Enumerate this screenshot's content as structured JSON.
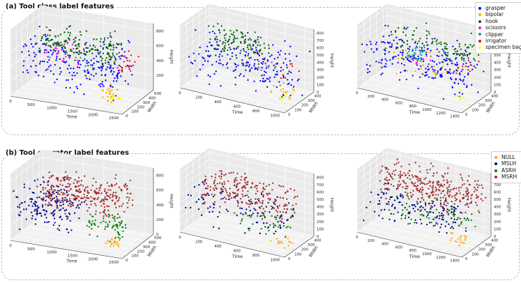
{
  "panel_a": {
    "title": "(a) Tool class label features"
  },
  "panel_b": {
    "title": "(b) Tool operator label features"
  },
  "chart_data": [
    {
      "type": "scatter",
      "projection": "3d",
      "panel": "a",
      "title": "(a) Tool class label features",
      "xlabel": "Time",
      "ylabel": "Width",
      "zlabel": "Height",
      "xticks": [
        0,
        500,
        1000,
        1500,
        2000,
        2500
      ],
      "xtick_labels": [
        "0",
        "500",
        "1000",
        "1500",
        "2000",
        "2500"
      ],
      "yticks": [
        0,
        100,
        200,
        300,
        400,
        500
      ],
      "zticks": [
        200,
        400,
        600,
        800
      ],
      "xlim": [
        0,
        2700
      ],
      "ylim": [
        0,
        550
      ],
      "zlim": [
        0,
        900
      ],
      "series": [
        {
          "name": "grasper",
          "color": "#0000ff",
          "region": {
            "x": [
              0,
              2500
            ],
            "y": [
              100,
              450
            ],
            "z": [
              50,
              750
            ]
          },
          "count": 230
        },
        {
          "name": "bipolar",
          "color": "#ffa500",
          "region": {
            "x": [
              2100,
              2400
            ],
            "y": [
              50,
              200
            ],
            "z": [
              50,
              250
            ]
          },
          "count": 25
        },
        {
          "name": "hook",
          "color": "#006400",
          "region": {
            "x": [
              300,
              2100
            ],
            "y": [
              200,
              500
            ],
            "z": [
              350,
              800
            ]
          },
          "count": 190
        },
        {
          "name": "scissors",
          "color": "#ff00ff",
          "region": {
            "x": [
              400,
              1300
            ],
            "y": [
              250,
              450
            ],
            "z": [
              300,
              650
            ]
          },
          "count": 22
        },
        {
          "name": "clipper",
          "color": "#00a0a0",
          "region": {
            "x": [
              1200,
              1600
            ],
            "y": [
              200,
              350
            ],
            "z": [
              300,
              600
            ]
          },
          "count": 6
        },
        {
          "name": "irrigator",
          "color": "#ff0000",
          "region": {
            "x": [
              2200,
              2600
            ],
            "y": [
              250,
              450
            ],
            "z": [
              300,
              650
            ]
          },
          "count": 22
        },
        {
          "name": "specimen bag",
          "color": "#ffff00",
          "region": {
            "x": [
              2300,
              2500
            ],
            "y": [
              50,
              150
            ],
            "z": [
              50,
              200
            ]
          },
          "count": 10
        }
      ]
    },
    {
      "type": "scatter",
      "projection": "3d",
      "panel": "a",
      "xlabel": "Time",
      "ylabel": "Width",
      "zlabel": "Height",
      "xticks": [
        0,
        200,
        400,
        600,
        800,
        1000
      ],
      "xtick_labels": [
        "0",
        "200",
        "400",
        "600",
        "800",
        "1000"
      ],
      "yticks": [
        0,
        100,
        200,
        300,
        400
      ],
      "zticks": [
        0,
        100,
        200,
        300,
        400,
        500,
        600,
        700,
        800
      ],
      "xlim": [
        0,
        1100
      ],
      "ylim": [
        0,
        450
      ],
      "zlim": [
        0,
        850
      ],
      "series": [
        {
          "name": "grasper",
          "color": "#0000ff",
          "region": {
            "x": [
              0,
              1100
            ],
            "y": [
              50,
              400
            ],
            "z": [
              50,
              700
            ]
          },
          "count": 200
        },
        {
          "name": "bipolar",
          "color": "#ffa500",
          "region": {
            "x": [
              900,
              1100
            ],
            "y": [
              50,
              200
            ],
            "z": [
              100,
              300
            ]
          },
          "count": 15
        },
        {
          "name": "hook",
          "color": "#006400",
          "region": {
            "x": [
              150,
              700
            ],
            "y": [
              200,
              400
            ],
            "z": [
              300,
              800
            ]
          },
          "count": 110
        },
        {
          "name": "scissors",
          "color": "#ff00ff",
          "region": {
            "x": [
              500,
              800
            ],
            "y": [
              150,
              300
            ],
            "z": [
              300,
              500
            ]
          },
          "count": 10
        },
        {
          "name": "clipper",
          "color": "#00a0a0",
          "region": {
            "x": [
              700,
              900
            ],
            "y": [
              150,
              300
            ],
            "z": [
              250,
              450
            ]
          },
          "count": 5
        },
        {
          "name": "irrigator",
          "color": "#ff0000",
          "region": {
            "x": [
              850,
              1050
            ],
            "y": [
              150,
              350
            ],
            "z": [
              250,
              450
            ]
          },
          "count": 10
        },
        {
          "name": "specimen bag",
          "color": "#ffff00",
          "region": {
            "x": [
              950,
              1100
            ],
            "y": [
              50,
              150
            ],
            "z": [
              50,
              200
            ]
          },
          "count": 12
        }
      ]
    },
    {
      "type": "scatter",
      "projection": "3d",
      "panel": "a",
      "xlabel": "Time",
      "ylabel": "Width",
      "zlabel": "Height",
      "xticks": [
        0,
        200,
        400,
        600,
        800,
        1000,
        1200,
        1400
      ],
      "xtick_labels": [
        "0",
        "200",
        "400",
        "600",
        "800",
        "1000",
        "1200",
        "1400"
      ],
      "yticks": [
        0,
        100,
        200,
        300,
        400
      ],
      "zticks": [
        0,
        100,
        200,
        300,
        400,
        500,
        600,
        700,
        800
      ],
      "xlim": [
        0,
        1500
      ],
      "ylim": [
        0,
        450
      ],
      "zlim": [
        0,
        850
      ],
      "series": [
        {
          "name": "grasper",
          "color": "#0000ff",
          "region": {
            "x": [
              0,
              1500
            ],
            "y": [
              50,
              400
            ],
            "z": [
              50,
              700
            ]
          },
          "count": 240
        },
        {
          "name": "bipolar",
          "color": "#ffa500",
          "region": {
            "x": [
              400,
              1200
            ],
            "y": [
              100,
              350
            ],
            "z": [
              100,
              600
            ]
          },
          "count": 35
        },
        {
          "name": "hook",
          "color": "#006400",
          "region": {
            "x": [
              200,
              1400
            ],
            "y": [
              200,
              450
            ],
            "z": [
              300,
              800
            ]
          },
          "count": 110
        },
        {
          "name": "scissors",
          "color": "#ff00ff",
          "region": {
            "x": [
              500,
              900
            ],
            "y": [
              150,
              300
            ],
            "z": [
              300,
              500
            ]
          },
          "count": 8
        },
        {
          "name": "clipper",
          "color": "#00a0a0",
          "region": {
            "x": [
              500,
              800
            ],
            "y": [
              150,
              300
            ],
            "z": [
              350,
              600
            ]
          },
          "count": 25
        },
        {
          "name": "irrigator",
          "color": "#ff0000",
          "region": {
            "x": [
              1200,
              1450
            ],
            "y": [
              200,
              350
            ],
            "z": [
              300,
              500
            ]
          },
          "count": 10
        },
        {
          "name": "specimen bag",
          "color": "#ffff00",
          "region": {
            "x": [
              1300,
              1500
            ],
            "y": [
              50,
              150
            ],
            "z": [
              50,
              200
            ]
          },
          "count": 10
        }
      ]
    },
    {
      "type": "scatter",
      "projection": "3d",
      "panel": "b",
      "title": "(b) Tool operator label features",
      "xlabel": "Time",
      "ylabel": "Width",
      "zlabel": "Height",
      "xticks": [
        0,
        500,
        1000,
        1500,
        2000,
        2500
      ],
      "xtick_labels": [
        "0",
        "500",
        "1000",
        "1500",
        "2000",
        "2500"
      ],
      "yticks": [
        0,
        100,
        200,
        300,
        400,
        500
      ],
      "zticks": [
        0,
        200,
        400,
        600,
        800
      ],
      "xlim": [
        0,
        2700
      ],
      "ylim": [
        0,
        550
      ],
      "zlim": [
        0,
        900
      ],
      "series": [
        {
          "name": "NULL",
          "color": "#ffa500",
          "region": {
            "x": [
              2200,
              2500
            ],
            "y": [
              50,
              150
            ],
            "z": [
              50,
              200
            ]
          },
          "count": 20
        },
        {
          "name": "MSLH",
          "color": "#00008b",
          "region": {
            "x": [
              0,
              1200
            ],
            "y": [
              50,
              450
            ],
            "z": [
              50,
              700
            ]
          },
          "count": 170
        },
        {
          "name": "ASRH",
          "color": "#008000",
          "region": {
            "x": [
              1500,
              2500
            ],
            "y": [
              100,
              350
            ],
            "z": [
              50,
              450
            ]
          },
          "count": 70
        },
        {
          "name": "MSRH",
          "color": "#a52a2a",
          "region": {
            "x": [
              300,
              2300
            ],
            "y": [
              200,
              500
            ],
            "z": [
              300,
              800
            ]
          },
          "count": 300
        }
      ]
    },
    {
      "type": "scatter",
      "projection": "3d",
      "panel": "b",
      "xlabel": "Time",
      "ylabel": "Width",
      "zlabel": "Height",
      "xticks": [
        0,
        200,
        400,
        600,
        800,
        1000
      ],
      "xtick_labels": [
        "0",
        "200",
        "400",
        "600",
        "800",
        "1000"
      ],
      "yticks": [
        0,
        100,
        200,
        300,
        400
      ],
      "zticks": [
        0,
        100,
        200,
        300,
        400,
        500,
        600,
        700,
        800
      ],
      "xlim": [
        0,
        1100
      ],
      "ylim": [
        0,
        450
      ],
      "zlim": [
        0,
        850
      ],
      "series": [
        {
          "name": "NULL",
          "color": "#ffa500",
          "region": {
            "x": [
              900,
              1100
            ],
            "y": [
              50,
              150
            ],
            "z": [
              50,
              200
            ]
          },
          "count": 15
        },
        {
          "name": "MSLH",
          "color": "#00008b",
          "region": {
            "x": [
              0,
              1000
            ],
            "y": [
              50,
              400
            ],
            "z": [
              50,
              650
            ]
          },
          "count": 110
        },
        {
          "name": "ASRH",
          "color": "#008000",
          "region": {
            "x": [
              500,
              1050
            ],
            "y": [
              100,
              350
            ],
            "z": [
              100,
              450
            ]
          },
          "count": 40
        },
        {
          "name": "MSRH",
          "color": "#a52a2a",
          "region": {
            "x": [
              100,
              1000
            ],
            "y": [
              150,
              400
            ],
            "z": [
              250,
              800
            ]
          },
          "count": 220
        }
      ]
    },
    {
      "type": "scatter",
      "projection": "3d",
      "panel": "b",
      "xlabel": "Time",
      "ylabel": "Width",
      "zlabel": "Height",
      "xticks": [
        0,
        200,
        400,
        600,
        800,
        1000,
        1200,
        1400
      ],
      "xtick_labels": [
        "0",
        "200",
        "400",
        "600",
        "800",
        "1000",
        "1200",
        "1400"
      ],
      "yticks": [
        0,
        100,
        200,
        300,
        400
      ],
      "zticks": [
        0,
        100,
        200,
        300,
        400,
        500,
        600,
        700,
        800
      ],
      "xlim": [
        0,
        1500
      ],
      "ylim": [
        0,
        450
      ],
      "zlim": [
        0,
        850
      ],
      "series": [
        {
          "name": "NULL",
          "color": "#ffa500",
          "region": {
            "x": [
              1200,
              1450
            ],
            "y": [
              50,
              150
            ],
            "z": [
              50,
              250
            ]
          },
          "count": 20
        },
        {
          "name": "MSLH",
          "color": "#00008b",
          "region": {
            "x": [
              0,
              1300
            ],
            "y": [
              50,
              400
            ],
            "z": [
              50,
              600
            ]
          },
          "count": 150
        },
        {
          "name": "ASRH",
          "color": "#008000",
          "region": {
            "x": [
              300,
              1450
            ],
            "y": [
              100,
              400
            ],
            "z": [
              100,
              500
            ]
          },
          "count": 60
        },
        {
          "name": "MSRH",
          "color": "#a52a2a",
          "region": {
            "x": [
              100,
              1450
            ],
            "y": [
              200,
              450
            ],
            "z": [
              300,
              850
            ]
          },
          "count": 300
        }
      ]
    }
  ]
}
